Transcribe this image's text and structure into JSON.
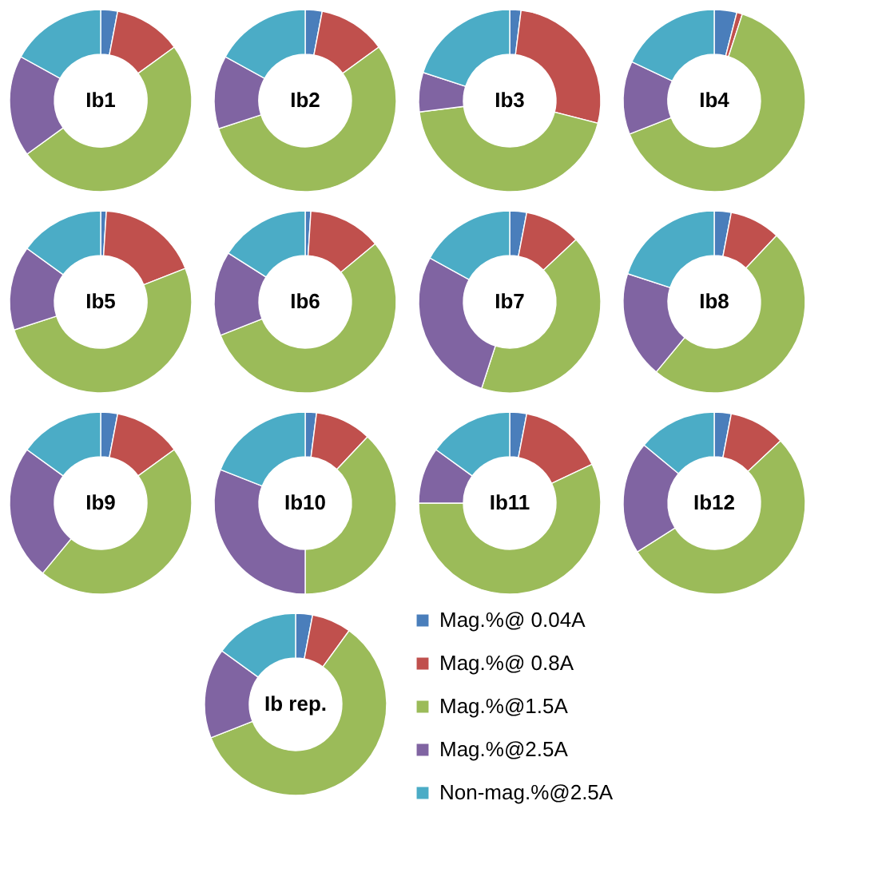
{
  "chart_data": [
    {
      "type": "donut",
      "title": "Ib1",
      "categories": [
        null,
        null,
        null,
        null,
        null
      ],
      "values": [
        3,
        12,
        50,
        18,
        17
      ],
      "colors": [
        "#4a7ebb",
        "#c0504d",
        "#9bbb59",
        "#8064a2",
        "#4bacc6"
      ]
    },
    {
      "type": "donut",
      "title": "Ib2",
      "categories": [
        null,
        null,
        null,
        null,
        null
      ],
      "values": [
        3,
        12,
        55,
        13,
        17
      ],
      "colors": [
        "#4a7ebb",
        "#c0504d",
        "#9bbb59",
        "#8064a2",
        "#4bacc6"
      ]
    },
    {
      "type": "donut",
      "title": "Ib3",
      "categories": [
        null,
        null,
        null,
        null,
        null
      ],
      "values": [
        2,
        27,
        44,
        7,
        20
      ],
      "colors": [
        "#4a7ebb",
        "#c0504d",
        "#9bbb59",
        "#8064a2",
        "#4bacc6"
      ]
    },
    {
      "type": "donut",
      "title": "Ib4",
      "categories": [
        null,
        null,
        null,
        null,
        null
      ],
      "values": [
        4,
        1,
        64,
        13,
        18
      ],
      "colors": [
        "#4a7ebb",
        "#c0504d",
        "#9bbb59",
        "#8064a2",
        "#4bacc6"
      ]
    },
    {
      "type": "donut",
      "title": "Ib5",
      "categories": [
        null,
        null,
        null,
        null,
        null
      ],
      "values": [
        1,
        18,
        51,
        15,
        15
      ],
      "colors": [
        "#4a7ebb",
        "#c0504d",
        "#9bbb59",
        "#8064a2",
        "#4bacc6"
      ]
    },
    {
      "type": "donut",
      "title": "Ib6",
      "categories": [
        null,
        null,
        null,
        null,
        null
      ],
      "values": [
        1,
        13,
        55,
        15,
        16
      ],
      "colors": [
        "#4a7ebb",
        "#c0504d",
        "#9bbb59",
        "#8064a2",
        "#4bacc6"
      ]
    },
    {
      "type": "donut",
      "title": "Ib7",
      "categories": [
        null,
        null,
        null,
        null,
        null
      ],
      "values": [
        3,
        10,
        42,
        28,
        17
      ],
      "colors": [
        "#4a7ebb",
        "#c0504d",
        "#9bbb59",
        "#8064a2",
        "#4bacc6"
      ]
    },
    {
      "type": "donut",
      "title": "Ib8",
      "categories": [
        null,
        null,
        null,
        null,
        null
      ],
      "values": [
        3,
        9,
        49,
        19,
        20
      ],
      "colors": [
        "#4a7ebb",
        "#c0504d",
        "#9bbb59",
        "#8064a2",
        "#4bacc6"
      ]
    },
    {
      "type": "donut",
      "title": "Ib9",
      "categories": [
        null,
        null,
        null,
        null,
        null
      ],
      "values": [
        3,
        12,
        46,
        24,
        15
      ],
      "colors": [
        "#4a7ebb",
        "#c0504d",
        "#9bbb59",
        "#8064a2",
        "#4bacc6"
      ]
    },
    {
      "type": "donut",
      "title": "Ib10",
      "categories": [
        null,
        null,
        null,
        null,
        null
      ],
      "values": [
        2,
        10,
        38,
        31,
        19
      ],
      "colors": [
        "#4a7ebb",
        "#c0504d",
        "#9bbb59",
        "#8064a2",
        "#4bacc6"
      ]
    },
    {
      "type": "donut",
      "title": "Ib11",
      "categories": [
        null,
        null,
        null,
        null,
        null
      ],
      "values": [
        3,
        15,
        57,
        10,
        15
      ],
      "colors": [
        "#4a7ebb",
        "#c0504d",
        "#9bbb59",
        "#8064a2",
        "#4bacc6"
      ]
    },
    {
      "type": "donut",
      "title": "Ib12",
      "categories": [
        null,
        null,
        null,
        null,
        null
      ],
      "values": [
        3,
        10,
        53,
        20,
        14
      ],
      "colors": [
        "#4a7ebb",
        "#c0504d",
        "#9bbb59",
        "#8064a2",
        "#4bacc6"
      ]
    },
    {
      "type": "donut",
      "title": "Ib rep.",
      "categories": [
        "Mag.%@ 0.04A",
        "Mag.%@ 0.8A",
        "Mag.%@1.5A",
        "Mag.%@2.5A",
        "Non-mag.%@2.5A"
      ],
      "values": [
        3,
        7,
        59,
        16,
        15
      ],
      "colors": [
        "#4a7ebb",
        "#c0504d",
        "#9bbb59",
        "#8064a2",
        "#4bacc6"
      ],
      "legend": "right"
    }
  ]
}
